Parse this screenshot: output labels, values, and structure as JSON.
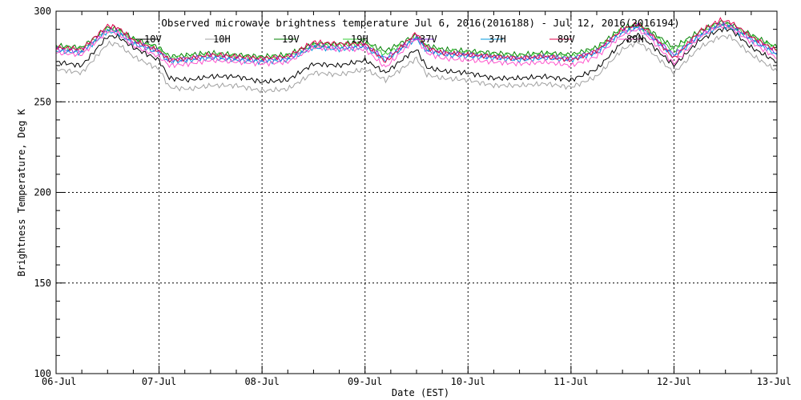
{
  "chart_data": {
    "type": "line",
    "title": "Observed microwave brightness temperature Jul  6, 2016(2016188) - Jul 12, 2016(2016194)",
    "xlabel": "Date (EST)",
    "ylabel": "Brightness Temperature, Deg K",
    "ylim": [
      100,
      300
    ],
    "xlim": [
      0,
      7
    ],
    "grid": true,
    "legend_position": "top",
    "x_tick_labels": [
      "06-Jul",
      "07-Jul",
      "08-Jul",
      "09-Jul",
      "10-Jul",
      "11-Jul",
      "12-Jul",
      "13-Jul"
    ],
    "y_tick_labels": [
      "100",
      "150",
      "200",
      "250",
      "300"
    ],
    "x": [
      0,
      0.25,
      0.5,
      0.6,
      0.75,
      1,
      1.1,
      1.3,
      1.5,
      1.75,
      2,
      2.25,
      2.5,
      2.75,
      3,
      3.2,
      3.4,
      3.5,
      3.6,
      3.75,
      4,
      4.25,
      4.5,
      4.75,
      5,
      5.25,
      5.5,
      5.65,
      5.75,
      6,
      6.25,
      6.45,
      6.55,
      6.75,
      7
    ],
    "series": [
      {
        "name": "10V",
        "color": "#000000",
        "values": [
          272,
          270,
          286,
          286,
          280,
          273,
          263,
          262,
          264,
          264,
          261,
          262,
          271,
          270,
          273,
          266,
          275,
          279,
          269,
          267,
          266,
          263,
          263,
          264,
          262,
          268,
          283,
          287,
          283,
          270,
          284,
          290,
          290,
          280,
          272
        ]
      },
      {
        "name": "10H",
        "color": "#a0a0a0",
        "values": [
          268,
          266,
          282,
          282,
          275,
          268,
          258,
          257,
          259,
          259,
          256,
          257,
          266,
          265,
          268,
          262,
          270,
          274,
          265,
          263,
          262,
          259,
          259,
          260,
          258,
          264,
          279,
          283,
          279,
          266,
          280,
          286,
          286,
          276,
          267
        ]
      },
      {
        "name": "19V",
        "color": "#008000",
        "values": [
          281,
          280,
          291,
          290,
          285,
          280,
          275,
          276,
          277,
          276,
          275,
          276,
          282,
          282,
          283,
          278,
          284,
          287,
          281,
          279,
          278,
          277,
          276,
          277,
          276,
          280,
          291,
          293,
          290,
          280,
          289,
          294,
          293,
          287,
          280
        ]
      },
      {
        "name": "19H",
        "color": "#33cc33",
        "values": [
          280,
          279,
          290,
          289,
          284,
          279,
          274,
          275,
          276,
          275,
          274,
          275,
          281,
          281,
          282,
          276,
          283,
          286,
          280,
          278,
          277,
          276,
          275,
          276,
          275,
          279,
          290,
          292,
          289,
          278,
          288,
          293,
          292,
          286,
          279
        ]
      },
      {
        "name": "37V",
        "color": "#8a2be2",
        "values": [
          279,
          278,
          290,
          289,
          283,
          278,
          273,
          274,
          275,
          274,
          273,
          274,
          281,
          280,
          281,
          274,
          282,
          286,
          279,
          277,
          276,
          275,
          274,
          275,
          274,
          278,
          289,
          292,
          288,
          276,
          287,
          293,
          292,
          285,
          277
        ]
      },
      {
        "name": "37H",
        "color": "#0099dd",
        "values": [
          278,
          277,
          289,
          288,
          282,
          277,
          272,
          273,
          274,
          273,
          272,
          273,
          280,
          279,
          280,
          273,
          281,
          285,
          278,
          276,
          275,
          274,
          273,
          274,
          273,
          277,
          288,
          291,
          287,
          275,
          286,
          292,
          291,
          284,
          276
        ]
      },
      {
        "name": "89V",
        "color": "#e0004d",
        "values": [
          280,
          279,
          292,
          291,
          284,
          278,
          273,
          274,
          276,
          275,
          274,
          275,
          283,
          282,
          282,
          272,
          283,
          288,
          280,
          277,
          276,
          275,
          274,
          275,
          273,
          278,
          290,
          293,
          289,
          274,
          289,
          295,
          294,
          286,
          278
        ]
      },
      {
        "name": "89H",
        "color": "#ff55cc",
        "values": [
          277,
          276,
          289,
          288,
          281,
          275,
          270,
          271,
          273,
          272,
          271,
          272,
          280,
          279,
          279,
          269,
          280,
          285,
          277,
          274,
          273,
          272,
          271,
          272,
          270,
          275,
          287,
          290,
          286,
          271,
          286,
          292,
          291,
          283,
          274
        ]
      }
    ]
  }
}
